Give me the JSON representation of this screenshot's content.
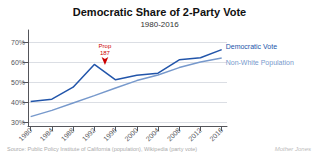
{
  "chart_data": {
    "type": "line",
    "title": "Democratic Share of 2-Party Vote",
    "subtitle": "1980-2016",
    "source": "Source: Public Policy Institute of California (population), Wikipedia (party vote)",
    "watermark": "Mother Jones",
    "x": [
      1980,
      1984,
      1988,
      1992,
      1996,
      2000,
      2004,
      2008,
      2012,
      2016
    ],
    "series": [
      {
        "name": "Democratic Vote",
        "color": "#2255aa",
        "values": [
          0.403,
          0.414,
          0.474,
          0.588,
          0.511,
          0.534,
          0.544,
          0.611,
          0.621,
          0.662
        ]
      },
      {
        "name": "Non-White Population",
        "color": "#7799cc",
        "values": [
          0.327,
          0.358,
          0.395,
          0.432,
          0.47,
          0.507,
          0.535,
          0.572,
          0.6,
          0.62
        ]
      }
    ],
    "xlim": [
      1979.5,
      2017
    ],
    "xticks": [
      1980,
      1984,
      1988,
      1992,
      1996,
      2000,
      2004,
      2008,
      2012,
      2016
    ],
    "ylim": [
      0.28,
      0.76
    ],
    "yticks": [
      {
        "value": 0.3,
        "label": "30%"
      },
      {
        "value": 0.4,
        "label": "40%"
      },
      {
        "value": 0.5,
        "label": "50%"
      },
      {
        "value": 0.6,
        "label": "60%"
      },
      {
        "value": 0.7,
        "label": "70%"
      }
    ],
    "grid": true,
    "annotations": [
      {
        "text": "Prop\n187",
        "x": 1994,
        "y": 0.5495,
        "color": "#cc0000"
      }
    ]
  }
}
